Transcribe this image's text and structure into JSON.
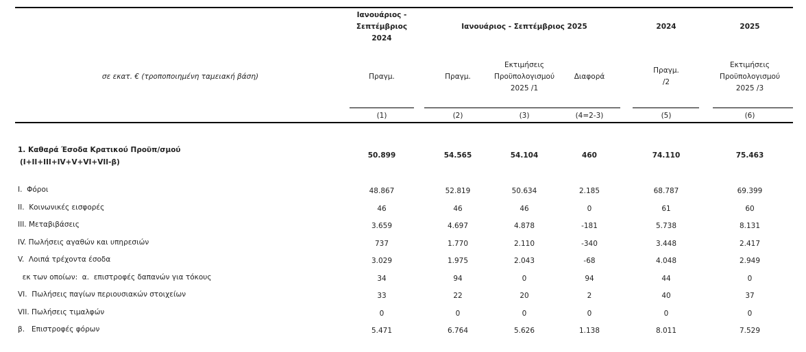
{
  "header": {
    "col1_period": [
      "Ιανουάριος -",
      "Σεπτέμβριος",
      "2024"
    ],
    "group_2025": "Ιανουάριος - Σεπτέμβριος 2025",
    "year_2024": "2024",
    "year_2025": "2025",
    "units_note": "σε εκατ. € (τροποποιημένη ταμειακή βάση)",
    "sub": {
      "c1": [
        "Πραγμ."
      ],
      "c2": [
        "Πραγμ."
      ],
      "c3": [
        "Εκτιμήσεις",
        "Προϋπολογισμού",
        "2025 /1"
      ],
      "c4": [
        "Διαφορά"
      ],
      "c5": [
        "Πραγμ.",
        "/2"
      ],
      "c6": [
        "Εκτιμήσεις",
        "Προϋπολογισμού",
        "2025 /3"
      ]
    },
    "col_numbers": [
      "(1)",
      "(2)",
      "(3)",
      "(4=2-3)",
      "(5)",
      "(6)"
    ]
  },
  "total": {
    "label": [
      "1. Καθαρά Έσοδα Κρατικού Προϋπ/σμού",
      "(I+II+III+IV+V+VI+VII-β)"
    ],
    "values": [
      "50.899",
      "54.565",
      "54.104",
      "460",
      "74.110",
      "75.463"
    ]
  },
  "rows": [
    {
      "label": "I.  Φόροι",
      "values": [
        "48.867",
        "52.819",
        "50.634",
        "2.185",
        "68.787",
        "69.399"
      ]
    },
    {
      "label": "II.  Κοινωνικές εισφορές",
      "values": [
        "46",
        "46",
        "46",
        "0",
        "61",
        "60"
      ]
    },
    {
      "label": "III. Μεταβιβάσεις",
      "values": [
        "3.659",
        "4.697",
        "4.878",
        "-181",
        "5.738",
        "8.131"
      ]
    },
    {
      "label": "IV. Πωλήσεις αγαθών και υπηρεσιών",
      "values": [
        "737",
        "1.770",
        "2.110",
        "-340",
        "3.448",
        "2.417"
      ]
    },
    {
      "label": "V.  Λοιπά τρέχοντα έσοδα",
      "values": [
        "3.029",
        "1.975",
        "2.043",
        "-68",
        "4.048",
        "2.949"
      ]
    },
    {
      "label": "  εκ των οποίων:  α.  επιστροφές δαπανών για τόκους",
      "values": [
        "34",
        "94",
        "0",
        "94",
        "44",
        "0"
      ]
    },
    {
      "label": "VI.  Πωλήσεις παγίων περιουσιακών στοιχείων",
      "values": [
        "33",
        "22",
        "20",
        "2",
        "40",
        "37"
      ]
    },
    {
      "label": "VII. Πωλήσεις τιμαλφών",
      "values": [
        "0",
        "0",
        "0",
        "0",
        "0",
        "0"
      ]
    },
    {
      "label": "β.   Επιστροφές φόρων",
      "values": [
        "5.471",
        "6.764",
        "5.626",
        "1.138",
        "8.011",
        "7.529"
      ]
    }
  ]
}
